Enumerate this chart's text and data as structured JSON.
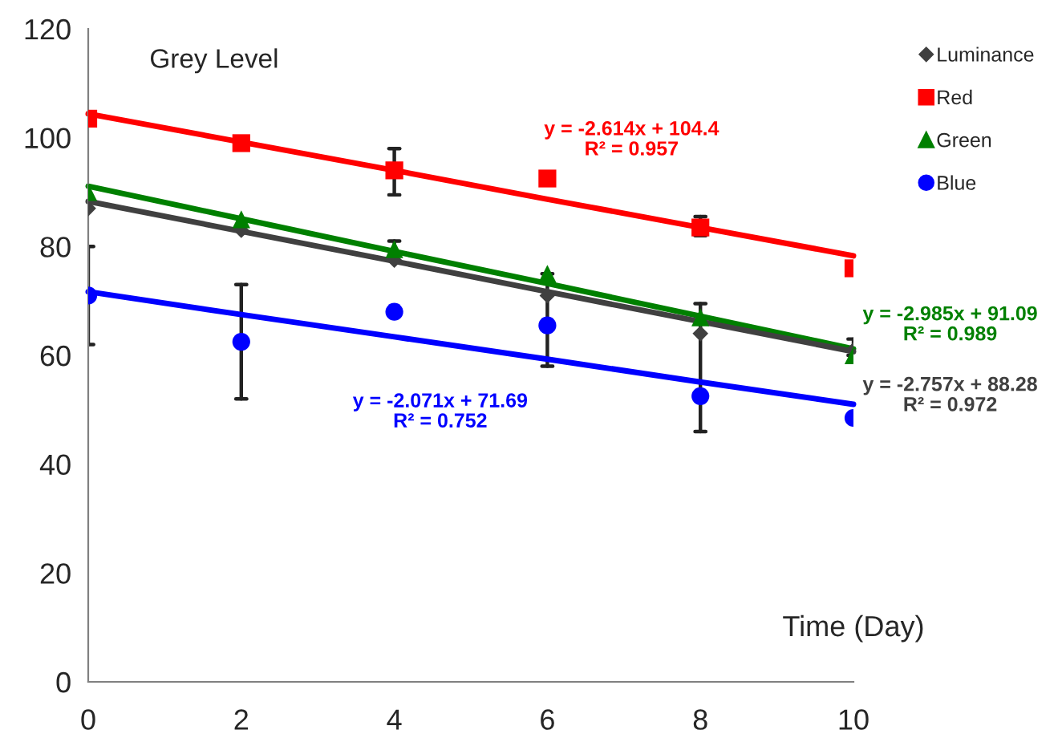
{
  "chart_data": {
    "type": "scatter",
    "title": "Grey Level",
    "xlabel": "Time (Day)",
    "x": [
      0,
      2,
      4,
      6,
      8,
      10
    ],
    "series": [
      {
        "name": "Luminance",
        "color": "#404040",
        "marker": "diamond",
        "values": [
          87,
          83,
          77.5,
          71,
          64,
          61
        ],
        "errors": [
          [
            62,
            80
          ],
          [
            52,
            73
          ],
          null,
          [
            58,
            75
          ],
          [
            46,
            69.5
          ],
          [
            60,
            63
          ]
        ]
      },
      {
        "name": "Red",
        "color": "#ff0000",
        "marker": "square",
        "values": [
          103.5,
          99,
          94,
          92.5,
          83.5,
          76
        ],
        "errors": [
          null,
          null,
          [
            89.5,
            98
          ],
          null,
          [
            82,
            85.5
          ],
          null
        ]
      },
      {
        "name": "Green",
        "color": "#008000",
        "marker": "triangle",
        "values": [
          90,
          85,
          79.5,
          75,
          67,
          60
        ],
        "errors": [
          null,
          null,
          [
            78.5,
            81
          ],
          null,
          null,
          null
        ]
      },
      {
        "name": "Blue",
        "color": "#0000ff",
        "marker": "circle",
        "values": [
          71,
          62.5,
          68,
          65.5,
          52.5,
          48.5
        ]
      },
      {
        "type": "line",
        "color": "#ff0000",
        "values": [
          104.4,
          99.2,
          94,
          88.7,
          83.5,
          78.3
        ]
      },
      {
        "type": "line",
        "color": "#008000",
        "values": [
          91.1,
          85.1,
          79.1,
          73.2,
          67.2,
          61.2
        ]
      },
      {
        "type": "line",
        "color": "#404040",
        "values": [
          88.3,
          82.8,
          77.3,
          71.7,
          66.2,
          60.7
        ]
      },
      {
        "type": "line",
        "color": "#0000ff",
        "values": [
          71.7,
          67.5,
          63.4,
          59.3,
          55.1,
          51
        ]
      }
    ],
    "annotations": [
      "y = -2.614x + 104.4\nR² = 0.957",
      "y = -2.985x + 91.09\nR² = 0.989",
      "y = -2.757x + 88.28\nR² = 0.972",
      "y = -2.071x + 71.69\nR² = 0.752"
    ],
    "xlim": [
      0,
      10
    ],
    "xticks": [
      0,
      2,
      4,
      6,
      8,
      10
    ],
    "ylim": [
      0,
      120
    ],
    "yticks": [
      0,
      20,
      40,
      60,
      80,
      100,
      120
    ],
    "grid": false,
    "legend": "top right"
  }
}
